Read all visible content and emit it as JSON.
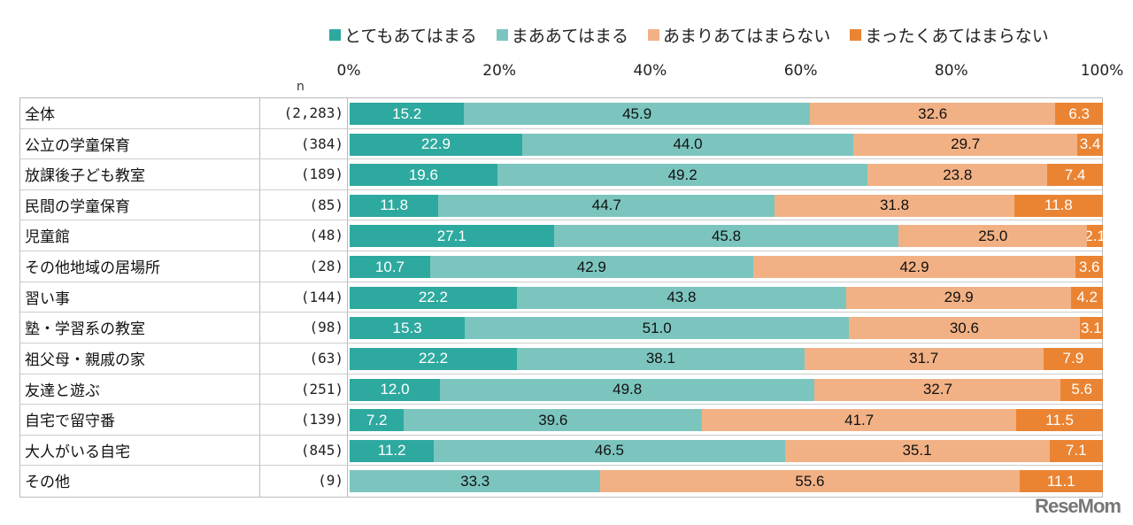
{
  "chart_data": {
    "type": "bar",
    "orientation": "horizontal-stacked-100",
    "legend_position": "top",
    "xlim": [
      0,
      100
    ],
    "x_ticks": [
      "0%",
      "20%",
      "40%",
      "60%",
      "80%",
      "100%"
    ],
    "n_header": "n",
    "series": [
      {
        "name": "とてもあてはまる",
        "color": "#2ea99f",
        "label_color": "#ffffff",
        "values": [
          15.2,
          22.9,
          19.6,
          11.8,
          27.1,
          10.7,
          22.2,
          15.3,
          22.2,
          12.0,
          7.2,
          11.2,
          0.0
        ]
      },
      {
        "name": "まああてはまる",
        "color": "#7cc5bf",
        "label_color": "#111111",
        "values": [
          45.9,
          44.0,
          49.2,
          44.7,
          45.8,
          42.9,
          43.8,
          51.0,
          38.1,
          49.8,
          39.6,
          46.5,
          33.3
        ]
      },
      {
        "name": "あまりあてはまらない",
        "color": "#f2b185",
        "label_color": "#111111",
        "values": [
          32.6,
          29.7,
          23.8,
          31.8,
          25.0,
          42.9,
          29.9,
          30.6,
          31.7,
          32.7,
          41.7,
          35.1,
          55.6
        ]
      },
      {
        "name": "まったくあてはまらない",
        "color": "#ea8433",
        "label_color": "#ffffff",
        "values": [
          6.3,
          3.4,
          7.4,
          11.8,
          2.1,
          3.6,
          4.2,
          3.1,
          7.9,
          5.6,
          11.5,
          7.1,
          11.1
        ]
      }
    ],
    "categories": [
      "全体",
      "公立の学童保育",
      "放課後子ども教室",
      "民間の学童保育",
      "児童館",
      "その他地域の居場所",
      "習い事",
      "塾・学習系の教室",
      "祖父母・親戚の家",
      "友達と遊ぶ",
      "自宅で留守番",
      "大人がいる自宅",
      "その他"
    ],
    "n": [
      "(2,283)",
      "(384)",
      "(189)",
      "(85)",
      "(48)",
      "(28)",
      "(144)",
      "(98)",
      "(63)",
      "(251)",
      "(139)",
      "(845)",
      "(9)"
    ]
  },
  "watermark": "ReseMom"
}
